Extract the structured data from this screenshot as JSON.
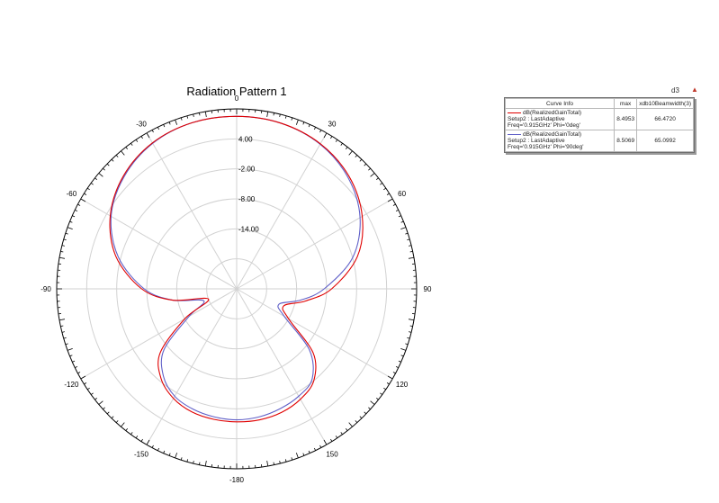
{
  "chart_data": {
    "type": "polar",
    "title": "Radiation Pattern 1",
    "angle_ticks": [
      0,
      30,
      60,
      90,
      120,
      150,
      -180,
      -150,
      -120,
      -90,
      -60,
      -30
    ],
    "angle_tick_labels": [
      "0",
      "30",
      "60",
      "90",
      "120",
      "150",
      "-180",
      "-150",
      "-120",
      "-90",
      "-60",
      "-30"
    ],
    "radial_ticks": [
      4.0,
      -2.0,
      -8.0,
      -14.0
    ],
    "radial_tick_labels": [
      "4.00",
      "-2.00",
      "-8.00",
      "-14.00"
    ],
    "radial_range": [
      -26,
      10
    ],
    "grid": true,
    "legend_placement": "right",
    "series": [
      {
        "name": "dB(RealizedGainTotal) Setup2 : LastAdaptive Freq='0.915GHz' Phi='0deg'",
        "color": "#e00000",
        "theta": [
          0,
          15,
          30,
          45,
          60,
          75,
          90,
          100,
          110,
          120,
          130,
          140,
          150,
          160,
          170,
          180,
          -170,
          -160,
          -150,
          -140,
          -130,
          -120,
          -110,
          -100,
          -90,
          -75,
          -60,
          -45,
          -30,
          -15
        ],
        "r": [
          8.5,
          8.3,
          7.5,
          5.8,
          3.0,
          -1.0,
          -7.0,
          -12.0,
          -16.0,
          -14.0,
          -6.0,
          -2.0,
          -0.5,
          0.3,
          0.6,
          0.6,
          0.5,
          0.2,
          -0.7,
          -2.5,
          -6.0,
          -14.0,
          -20.0,
          -13.0,
          -7.0,
          -1.0,
          3.2,
          6.0,
          7.7,
          8.4
        ]
      },
      {
        "name": "dB(RealizedGainTotal) Setup2 : LastAdaptive Freq='0.915GHz' Phi='90deg'",
        "color": "#6060c8",
        "theta": [
          0,
          15,
          30,
          45,
          60,
          75,
          90,
          100,
          110,
          120,
          130,
          140,
          150,
          160,
          170,
          180,
          -170,
          -160,
          -150,
          -140,
          -130,
          -120,
          -110,
          -100,
          -90,
          -75,
          -60,
          -45,
          -30,
          -15
        ],
        "r": [
          8.5,
          8.3,
          7.4,
          5.5,
          2.5,
          -2.0,
          -8.5,
          -13.0,
          -17.0,
          -15.0,
          -7.0,
          -2.5,
          -1.2,
          -0.5,
          0.0,
          0.2,
          0.0,
          -0.4,
          -1.2,
          -3.2,
          -7.0,
          -15.0,
          -19.0,
          -13.0,
          -7.5,
          -1.5,
          3.0,
          5.8,
          7.6,
          8.4
        ]
      }
    ]
  },
  "legend": {
    "id_label": "d3",
    "headers": [
      "Curve Info",
      "max",
      "xdb10Beamwidth(3)"
    ],
    "rows": [
      {
        "color": "#e00000",
        "line1": "dB(RealizedGainTotal)",
        "line2": "Setup2 : LastAdaptive",
        "line3": "Freq='0.915GHz' Phi='0deg'",
        "max": "8.4953",
        "beamwidth": "66.4720"
      },
      {
        "color": "#6060c8",
        "line1": "dB(RealizedGainTotal)",
        "line2": "Setup2 : LastAdaptive",
        "line3": "Freq='0.915GHz' Phi='90deg'",
        "max": "8.5069",
        "beamwidth": "65.0992"
      }
    ]
  }
}
